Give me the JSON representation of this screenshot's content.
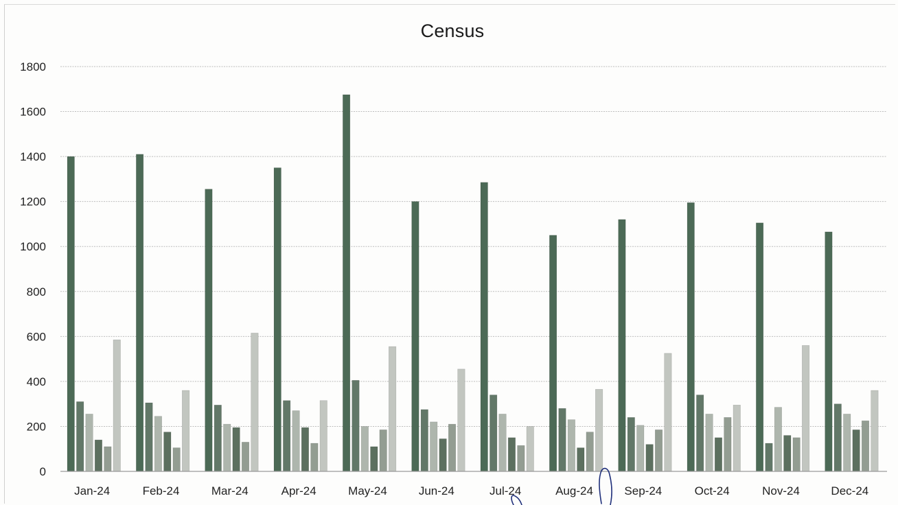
{
  "chart_data": {
    "type": "bar",
    "title": "Census",
    "categories": [
      "Jan-24",
      "Feb-24",
      "Mar-24",
      "Apr-24",
      "May-24",
      "Jun-24",
      "Jul-24",
      "Aug-24",
      "Sep-24",
      "Oct-24",
      "Nov-24",
      "Dec-24"
    ],
    "series": [
      {
        "values": [
          1400,
          1410,
          1255,
          1350,
          1675,
          1200,
          1285,
          1050,
          1120,
          1195,
          1105,
          1065
        ],
        "color": "#4c6a56"
      },
      {
        "values": [
          310,
          305,
          295,
          315,
          405,
          275,
          340,
          280,
          240,
          340,
          125,
          300
        ],
        "color": "#627868"
      },
      {
        "values": [
          255,
          245,
          210,
          270,
          200,
          220,
          255,
          230,
          205,
          255,
          285,
          255
        ],
        "color": "#aeb6ad"
      },
      {
        "values": [
          140,
          175,
          195,
          195,
          110,
          145,
          150,
          105,
          120,
          150,
          160,
          185
        ],
        "color": "#5c705f"
      },
      {
        "values": [
          110,
          105,
          130,
          125,
          185,
          210,
          115,
          175,
          185,
          240,
          150,
          225
        ],
        "color": "#939d92"
      },
      {
        "values": [
          585,
          360,
          615,
          315,
          555,
          455,
          200,
          365,
          525,
          295,
          560,
          360
        ],
        "color": "#c2c6c0"
      }
    ],
    "yticks": [
      0,
      200,
      400,
      600,
      800,
      1000,
      1200,
      1400,
      1600,
      1800
    ],
    "ylim": [
      0,
      1800
    ],
    "grid": true
  }
}
